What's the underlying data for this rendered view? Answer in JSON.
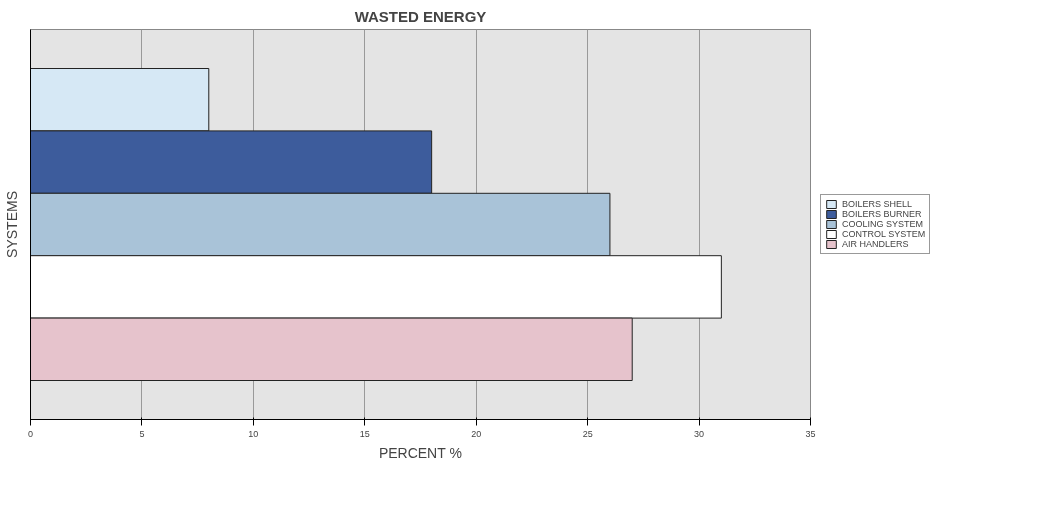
{
  "chart_data": {
    "type": "bar",
    "orientation": "horizontal",
    "title": "WASTED ENERGY",
    "xlabel": "PERCENT %",
    "ylabel": "SYSTEMS",
    "categories": [
      null
    ],
    "series": [
      {
        "name": "BOILERS SHELL",
        "color": "#d6e8f5",
        "values": [
          8
        ]
      },
      {
        "name": "BOILERS BURNER",
        "color": "#3d5c9c",
        "values": [
          18
        ]
      },
      {
        "name": "COOLING SYSTEM",
        "color": "#a9c3d8",
        "values": [
          26
        ]
      },
      {
        "name": "CONTROL SYSTEM",
        "color": "#ffffff",
        "values": [
          31
        ]
      },
      {
        "name": "AIR HANDLERS",
        "color": "#e6c3cc",
        "values": [
          27
        ]
      }
    ],
    "xlim": [
      0,
      35
    ],
    "xticks": [
      0,
      5,
      10,
      15,
      20,
      25,
      30,
      35
    ],
    "grid": "x",
    "legend": "right",
    "tick_labels": "x"
  }
}
